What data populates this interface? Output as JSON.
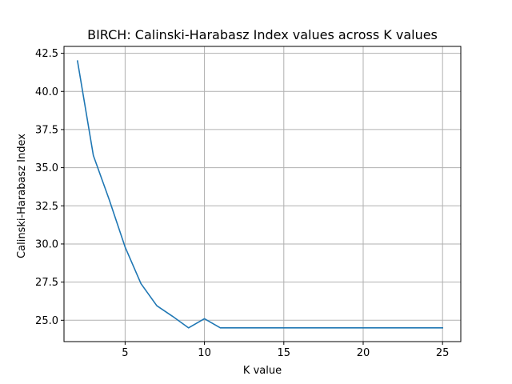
{
  "chart_data": {
    "type": "line",
    "title": "BIRCH: Calinski-Harabasz Index values across K values",
    "xlabel": "K value",
    "ylabel": "Calinski-Harabasz Index",
    "xlim": [
      1.15,
      26.15
    ],
    "ylim": [
      23.6,
      42.95
    ],
    "x_ticks": [
      5,
      10,
      15,
      20,
      25
    ],
    "x_tick_labels": [
      "5",
      "10",
      "15",
      "20",
      "25"
    ],
    "y_ticks": [
      25.0,
      27.5,
      30.0,
      32.5,
      35.0,
      37.5,
      40.0,
      42.5
    ],
    "y_tick_labels": [
      "25.0",
      "27.5",
      "30.0",
      "32.5",
      "35.0",
      "37.5",
      "40.0",
      "42.5"
    ],
    "grid": true,
    "series": [
      {
        "color": "#1f77b4",
        "x": [
          2,
          3,
          4,
          5,
          6,
          7,
          8,
          9,
          10,
          11,
          12,
          13,
          14,
          15,
          16,
          17,
          18,
          19,
          20,
          21,
          22,
          23,
          24,
          25
        ],
        "y": [
          42.0,
          35.8,
          32.9,
          29.8,
          27.4,
          25.95,
          25.25,
          24.5,
          25.1,
          24.5,
          24.5,
          24.5,
          24.5,
          24.5,
          24.5,
          24.5,
          24.5,
          24.5,
          24.5,
          24.5,
          24.5,
          24.5,
          24.5,
          24.5
        ]
      }
    ]
  }
}
